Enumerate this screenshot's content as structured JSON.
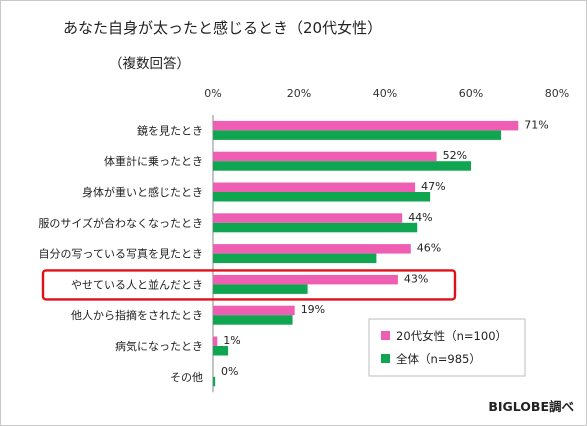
{
  "title": "あなた自身が太ったと感じるとき（20代女性）",
  "subtitle": "（複数回答）",
  "source": "BIGLOBE調べ",
  "colors": {
    "women20s": "#ee5fb4",
    "all": "#10a651",
    "highlight": "#e0101a"
  },
  "chart_data": {
    "type": "bar",
    "orientation": "horizontal",
    "xlim": [
      0,
      80
    ],
    "xticks": [
      "0%",
      "20%",
      "40%",
      "60%",
      "80%"
    ],
    "categories": [
      "鏡を見たとき",
      "体重計に乗ったとき",
      "身体が重いと感じたとき",
      "服のサイズが合わなくなったとき",
      "自分の写っている写真を見たとき",
      "やせている人と並んだとき",
      "他人から指摘をされたとき",
      "病気になったとき",
      "その他"
    ],
    "series": [
      {
        "name": "20代女性（n=100）",
        "values": [
          71,
          52,
          47,
          44,
          46,
          43,
          19,
          1,
          0
        ],
        "labels": [
          "71%",
          "52%",
          "47%",
          "44%",
          "46%",
          "43%",
          "19%",
          "1%",
          "0%"
        ]
      },
      {
        "name": "全体（n=985）",
        "values": [
          67,
          60,
          50.5,
          47.5,
          38,
          22,
          18.5,
          3.5,
          0.5
        ]
      }
    ],
    "highlighted_category": "やせている人と並んだとき",
    "legend_position": "bottom-right",
    "grid": false
  }
}
